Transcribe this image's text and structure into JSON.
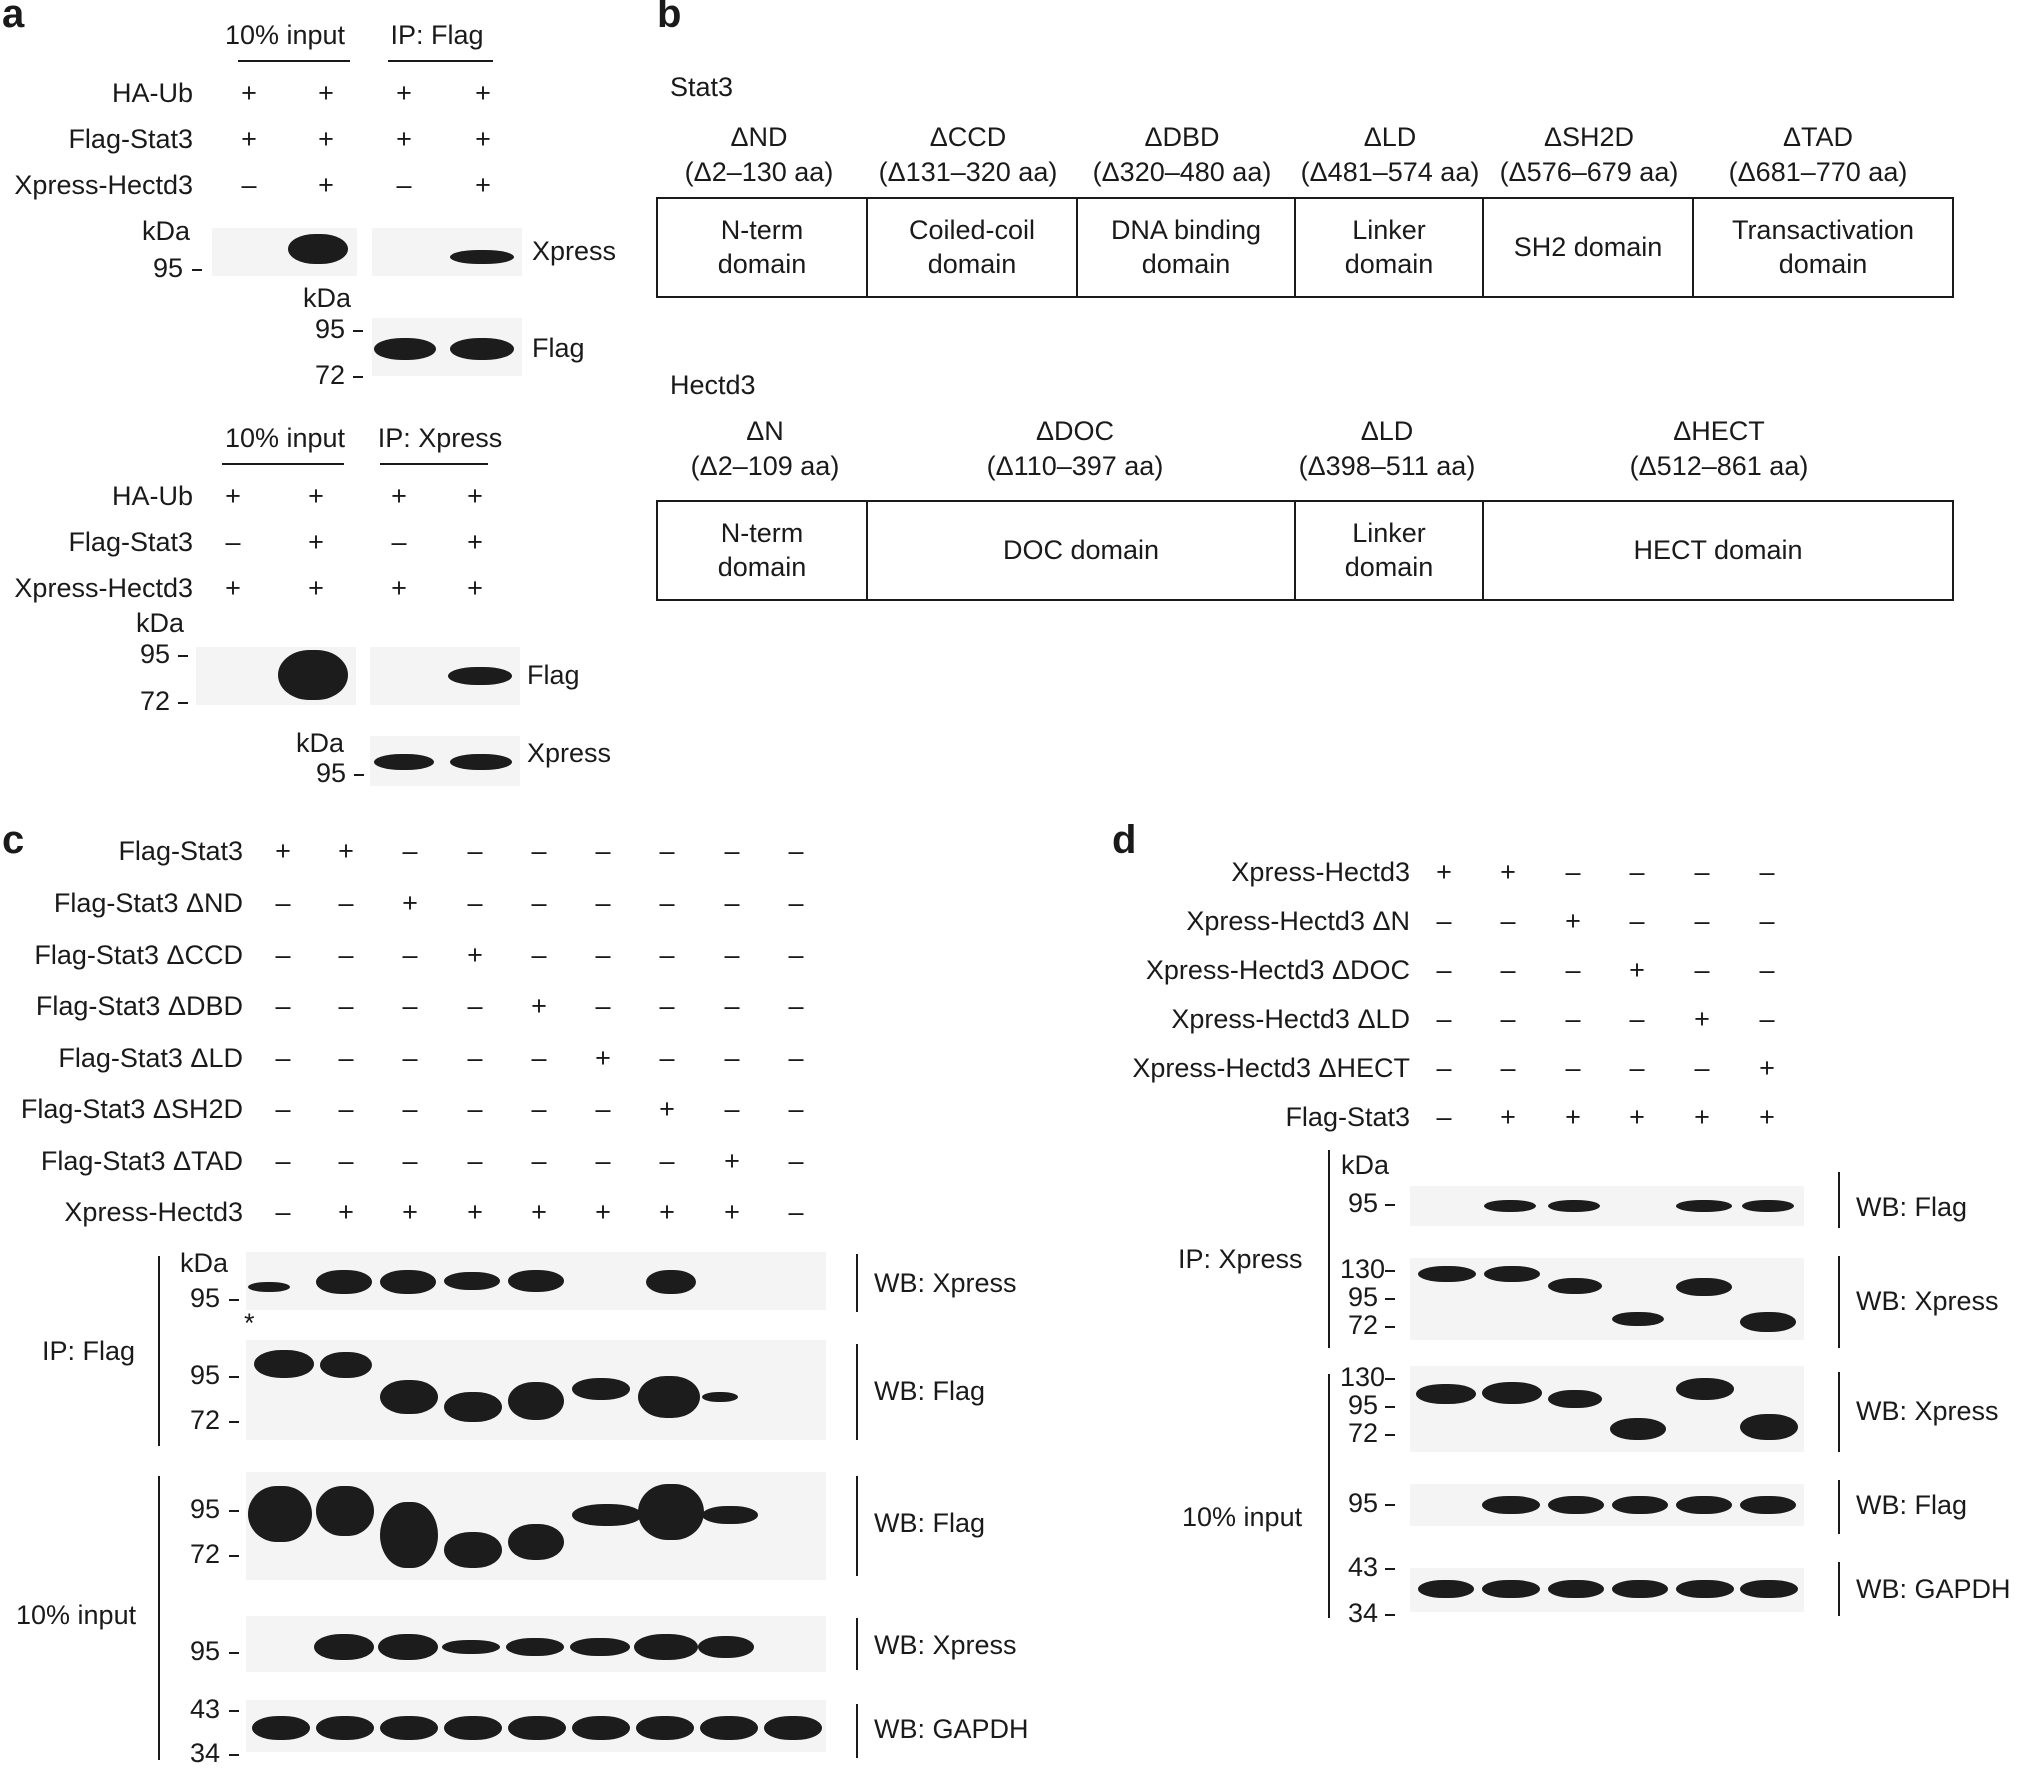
{
  "a": {
    "label": "a",
    "top": {
      "group_input": "10% input",
      "group_ip": "IP: Flag",
      "rows": [
        {
          "name": "HA-Ub",
          "signs": [
            "+",
            "+",
            "+",
            "+"
          ]
        },
        {
          "name": "Flag-Stat3",
          "signs": [
            "+",
            "+",
            "+",
            "+"
          ]
        },
        {
          "name": "Xpress-Hectd3",
          "signs": [
            "–",
            "+",
            "–",
            "+"
          ]
        }
      ],
      "kda": "kDa",
      "mw95": "95",
      "blot1": "Xpress",
      "kda2": "kDa",
      "mw95b": "95",
      "mw72": "72",
      "blot2": "Flag"
    },
    "bottom": {
      "group_input": "10% input",
      "group_ip": "IP: Xpress",
      "rows": [
        {
          "name": "HA-Ub",
          "signs": [
            "+",
            "+",
            "+",
            "+"
          ]
        },
        {
          "name": "Flag-Stat3",
          "signs": [
            "–",
            "+",
            "–",
            "+"
          ]
        },
        {
          "name": "Xpress-Hectd3",
          "signs": [
            "+",
            "+",
            "+",
            "+"
          ]
        }
      ],
      "kda": "kDa",
      "mw95": "95",
      "mw72": "72",
      "blot1": "Flag",
      "kda2": "kDa",
      "mw95b": "95",
      "blot2": "Xpress"
    }
  },
  "b": {
    "label": "b",
    "stat3": {
      "title": "Stat3",
      "domains": [
        {
          "del": "ΔND",
          "range": "(Δ2–130 aa)",
          "line1": "N-term",
          "line2": "domain"
        },
        {
          "del": "ΔCCD",
          "range": "(Δ131–320 aa)",
          "line1": "Coiled-coil",
          "line2": "domain"
        },
        {
          "del": "ΔDBD",
          "range": "(Δ320–480 aa)",
          "line1": "DNA binding",
          "line2": "domain"
        },
        {
          "del": "ΔLD",
          "range": "(Δ481–574 aa)",
          "line1": "Linker",
          "line2": "domain"
        },
        {
          "del": "ΔSH2D",
          "range": "(Δ576–679 aa)",
          "line1": "SH2 domain",
          "line2": ""
        },
        {
          "del": "ΔTAD",
          "range": "(Δ681–770 aa)",
          "line1": "Transactivation",
          "line2": "domain"
        }
      ]
    },
    "hectd3": {
      "title": "Hectd3",
      "domains": [
        {
          "del": "ΔN",
          "range": "(Δ2–109 aa)",
          "line1": "N-term",
          "line2": "domain"
        },
        {
          "del": "ΔDOC",
          "range": "(Δ110–397 aa)",
          "line1": "DOC domain",
          "line2": ""
        },
        {
          "del": "ΔLD",
          "range": "(Δ398–511 aa)",
          "line1": "Linker",
          "line2": "domain"
        },
        {
          "del": "ΔHECT",
          "range": "(Δ512–861 aa)",
          "line1": "HECT domain",
          "line2": ""
        }
      ]
    }
  },
  "c": {
    "label": "c",
    "rows": [
      {
        "name": "Flag-Stat3",
        "signs": [
          "+",
          "+",
          "–",
          "–",
          "–",
          "–",
          "–",
          "–",
          "–"
        ]
      },
      {
        "name": "Flag-Stat3 ΔND",
        "signs": [
          "–",
          "–",
          "+",
          "–",
          "–",
          "–",
          "–",
          "–",
          "–"
        ]
      },
      {
        "name": "Flag-Stat3 ΔCCD",
        "signs": [
          "–",
          "–",
          "–",
          "+",
          "–",
          "–",
          "–",
          "–",
          "–"
        ]
      },
      {
        "name": "Flag-Stat3 ΔDBD",
        "signs": [
          "–",
          "–",
          "–",
          "–",
          "+",
          "–",
          "–",
          "–",
          "–"
        ]
      },
      {
        "name": "Flag-Stat3 ΔLD",
        "signs": [
          "–",
          "–",
          "–",
          "–",
          "–",
          "+",
          "–",
          "–",
          "–"
        ]
      },
      {
        "name": "Flag-Stat3 ΔSH2D",
        "signs": [
          "–",
          "–",
          "–",
          "–",
          "–",
          "–",
          "+",
          "–",
          "–"
        ]
      },
      {
        "name": "Flag-Stat3 ΔTAD",
        "signs": [
          "–",
          "–",
          "–",
          "–",
          "–",
          "–",
          "–",
          "+",
          "–"
        ]
      },
      {
        "name": "Xpress-Hectd3",
        "signs": [
          "–",
          "+",
          "+",
          "+",
          "+",
          "+",
          "+",
          "+",
          "–"
        ]
      }
    ],
    "kda": "kDa",
    "asterisk": "*",
    "ip_label": "IP: Flag",
    "input_label": "10% input",
    "blots": [
      "WB: Xpress",
      "WB: Flag",
      "WB: Flag",
      "WB: Xpress",
      "WB: GAPDH"
    ],
    "mw": {
      "a95": "95",
      "b95": "95",
      "b72": "72",
      "c95": "95",
      "c72": "72",
      "d95": "95",
      "e43": "43",
      "e34": "34"
    }
  },
  "d": {
    "label": "d",
    "rows": [
      {
        "name": "Xpress-Hectd3",
        "signs": [
          "+",
          "+",
          "–",
          "–",
          "–",
          "–"
        ]
      },
      {
        "name": "Xpress-Hectd3 ΔN",
        "signs": [
          "–",
          "–",
          "+",
          "–",
          "–",
          "–"
        ]
      },
      {
        "name": "Xpress-Hectd3 ΔDOC",
        "signs": [
          "–",
          "–",
          "–",
          "+",
          "–",
          "–"
        ]
      },
      {
        "name": "Xpress-Hectd3 ΔLD",
        "signs": [
          "–",
          "–",
          "–",
          "–",
          "+",
          "–"
        ]
      },
      {
        "name": "Xpress-Hectd3 ΔHECT",
        "signs": [
          "–",
          "–",
          "–",
          "–",
          "–",
          "+"
        ]
      },
      {
        "name": "Flag-Stat3",
        "signs": [
          "–",
          "+",
          "+",
          "+",
          "+",
          "+"
        ]
      }
    ],
    "kda": "kDa",
    "ip_label": "IP: Xpress",
    "input_label": "10% input",
    "blots": [
      "WB: Flag",
      "WB: Xpress",
      "WB: Xpress",
      "WB: Flag",
      "WB: GAPDH"
    ],
    "mw": {
      "a95": "95",
      "b130": "130",
      "b95": "95",
      "b72": "72",
      "c130": "130",
      "c95": "95",
      "c72": "72",
      "d95": "95",
      "e43": "43",
      "e34": "34"
    }
  }
}
